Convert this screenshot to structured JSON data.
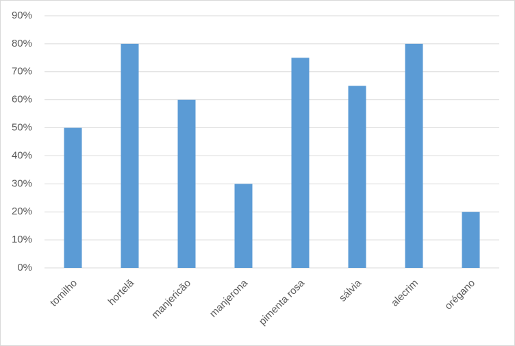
{
  "chart_data": {
    "type": "bar",
    "categories": [
      "tomilho",
      "hortelã",
      "manjericão",
      "manjerona",
      "pimenta rosa",
      "sálvia",
      "alecrim",
      "orégano"
    ],
    "values": [
      50,
      80,
      60,
      30,
      75,
      65,
      80,
      20
    ],
    "color": "#5b9bd5",
    "ylim": [
      0,
      90
    ],
    "yticks": [
      {
        "value": 0,
        "label": "0%"
      },
      {
        "value": 10,
        "label": "10%"
      },
      {
        "value": 20,
        "label": "20%"
      },
      {
        "value": 30,
        "label": "30%"
      },
      {
        "value": 40,
        "label": "40%"
      },
      {
        "value": 50,
        "label": "50%"
      },
      {
        "value": 60,
        "label": "60%"
      },
      {
        "value": 70,
        "label": "70%"
      },
      {
        "value": 80,
        "label": "80%"
      },
      {
        "value": 90,
        "label": "90%"
      }
    ],
    "grid": true
  }
}
